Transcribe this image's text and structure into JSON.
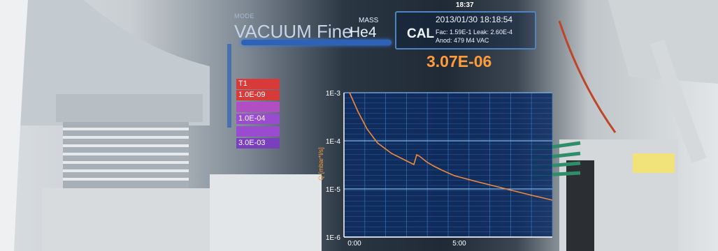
{
  "hud": {
    "clock": "18:37",
    "mode_label": "MODE",
    "mode_value": "VACUUM Fine",
    "mass_label": "MASS",
    "mass_value": "He4",
    "cal_label": "CAL",
    "datetime": "2013/01/30 18:18:54",
    "fac_leak": "Fac: 1.59E-1  Leak: 2.60E-4",
    "anod": "Anod: 479 M4 VAC",
    "reading": "3.07E-06",
    "thresholds": [
      {
        "label": "T1",
        "color": "#d83a3a"
      },
      {
        "label": "1.0E-09",
        "color": "#d83a3a"
      },
      {
        "label": "",
        "color": "#b04fc4"
      },
      {
        "label": "1.0E-04",
        "color": "#9a4bd0"
      },
      {
        "label": "",
        "color": "#9a4bd0"
      },
      {
        "label": "3.0E-03",
        "color": "#7a3fbf"
      }
    ]
  },
  "graph": {
    "y_axis_label": "Q [mbar*l/s]",
    "y_ticks": [
      "1E-3",
      "1E-4",
      "1E-5",
      "1E-6"
    ],
    "x_ticks": [
      "0:00",
      "5:00"
    ],
    "line_color": "#f08a3a",
    "grid_color": "#3c86c9"
  },
  "colors": {
    "hud_blue": "#2e62b8",
    "reading_orange": "#ff9c3a"
  }
}
